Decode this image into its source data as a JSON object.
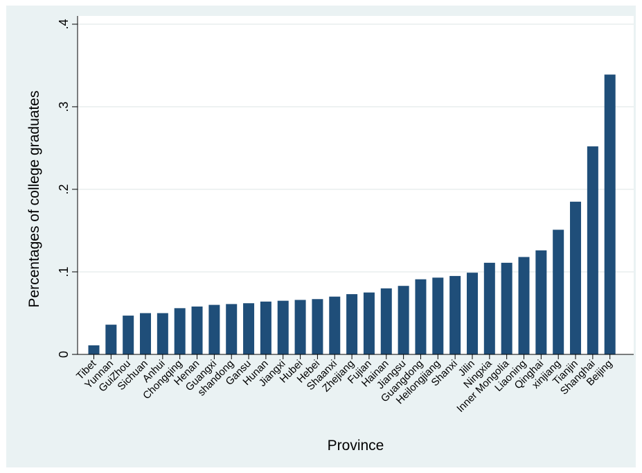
{
  "chart_data": {
    "type": "bar",
    "title": "",
    "xlabel": "Province",
    "ylabel": "Percentages of college graduates",
    "ylim": [
      0,
      0.41
    ],
    "yticks": [
      {
        "value": 0,
        "label": "0"
      },
      {
        "value": 0.1,
        "label": ".1"
      },
      {
        "value": 0.2,
        "label": ".2"
      },
      {
        "value": 0.3,
        "label": ".3"
      },
      {
        "value": 0.4,
        "label": ".4"
      }
    ],
    "grid": true,
    "legend": "none",
    "bar_color": "#1f4e79",
    "categories": [
      "Tibet",
      "Yunnan",
      "GuiZhou",
      "Sichuan",
      "Anhui",
      "Chongqing",
      "Henan",
      "Guangxi",
      "shandong",
      "Gansu",
      "Hunan",
      "Jiangxi",
      "Hubei",
      "Hebei",
      "Shaanxi",
      "Zhejiang",
      "Fujian",
      "Hainan",
      "Jiangsu",
      "Guangdong",
      "Heilongjiang",
      "Shanxi",
      "Jilin",
      "Ningxia",
      "Inner Mongolia",
      "Liaoning",
      "Qinghai",
      "xinjiang",
      "Tianjin",
      "Shanghai",
      "Beijing"
    ],
    "values": [
      0.011,
      0.036,
      0.047,
      0.05,
      0.05,
      0.056,
      0.058,
      0.06,
      0.061,
      0.062,
      0.064,
      0.065,
      0.066,
      0.067,
      0.07,
      0.073,
      0.075,
      0.08,
      0.083,
      0.091,
      0.093,
      0.095,
      0.099,
      0.111,
      0.111,
      0.118,
      0.126,
      0.151,
      0.185,
      0.252,
      0.339
    ]
  }
}
